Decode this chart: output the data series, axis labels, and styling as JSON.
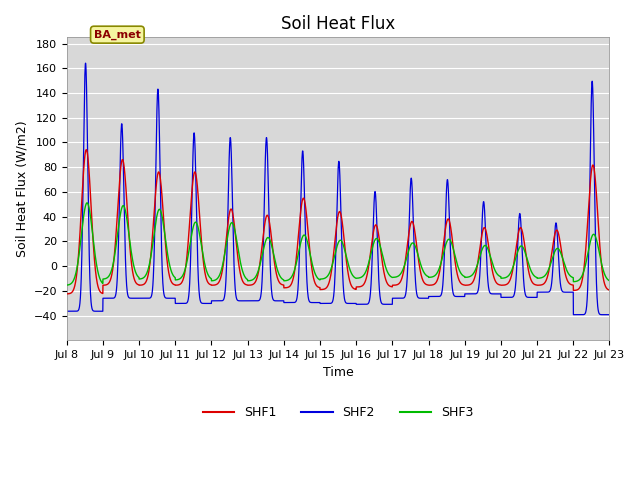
{
  "title": "Soil Heat Flux",
  "xlabel": "Time",
  "ylabel": "Soil Heat Flux (W/m2)",
  "ylim": [
    -60,
    185
  ],
  "yticks": [
    -40,
    -20,
    0,
    20,
    40,
    60,
    80,
    100,
    120,
    140,
    160,
    180
  ],
  "num_days": 15,
  "xtick_labels": [
    "Jul 8",
    "Jul 9",
    "Jul 10",
    "Jul 11",
    "Jul 12",
    "Jul 13",
    "Jul 14",
    "Jul 15",
    "Jul 16",
    "Jul 17",
    "Jul 18",
    "Jul 19",
    "Jul 20",
    "Jul 21",
    "Jul 22",
    "Jul 23"
  ],
  "colors": {
    "SHF1": "#dd0000",
    "SHF2": "#0000dd",
    "SHF3": "#00bb00"
  },
  "legend_labels": [
    "SHF1",
    "SHF2",
    "SHF3"
  ],
  "annotation_text": "BA_met",
  "background_color": "#d8d8d8",
  "grid_color": "#ffffff",
  "title_fontsize": 12,
  "label_fontsize": 9,
  "tick_fontsize": 8,
  "shf2_peaks": [
    185,
    130,
    158,
    125,
    120,
    120,
    110,
    102,
    78,
    86,
    84,
    65,
    57,
    47,
    172
  ],
  "shf2_night": [
    -52,
    -37,
    -37,
    -43,
    -40,
    -40,
    -42,
    -43,
    -44,
    -37,
    -35,
    -32,
    -36,
    -30,
    -56
  ],
  "shf1_peaks": [
    107,
    95,
    85,
    85,
    55,
    50,
    65,
    55,
    43,
    45,
    47,
    40,
    40,
    38,
    93
  ],
  "shf1_night": [
    -32,
    -22,
    -22,
    -22,
    -22,
    -22,
    -25,
    -27,
    -24,
    -22,
    -22,
    -22,
    -22,
    -22,
    -28
  ],
  "shf3_peaks": [
    60,
    55,
    52,
    42,
    42,
    30,
    32,
    27,
    28,
    24,
    27,
    22,
    22,
    20,
    33
  ],
  "shf3_night": [
    -22,
    -15,
    -15,
    -16,
    -17,
    -17,
    -17,
    -15,
    -14,
    -13,
    -13,
    -13,
    -14,
    -14,
    -18
  ]
}
